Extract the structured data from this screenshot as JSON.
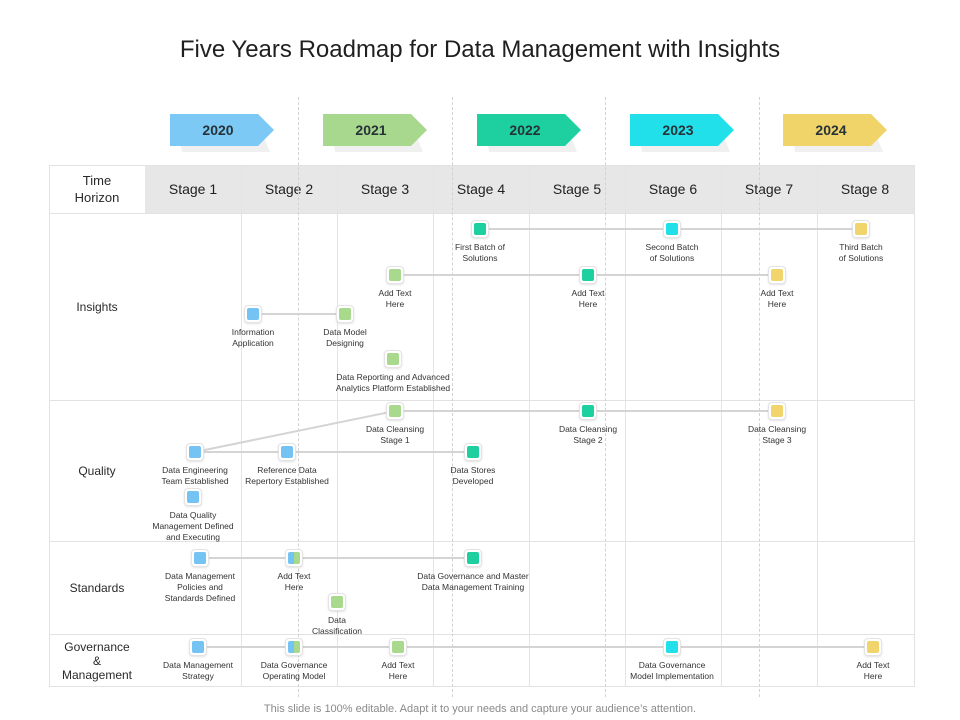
{
  "title": "Five Years Roadmap for Data Management with Insights",
  "footer": "This slide is 100% editable. Adapt it to your needs and capture your audience’s attention.",
  "time_horizon": [
    "Time",
    "Horizon"
  ],
  "stages": [
    "Stage 1",
    "Stage 2",
    "Stage 3",
    "Stage 4",
    "Stage 5",
    "Stage 6",
    "Stage 7",
    "Stage 8"
  ],
  "years": [
    {
      "label": "2020",
      "color": "#7cc9f5"
    },
    {
      "label": "2021",
      "color": "#a8d88e"
    },
    {
      "label": "2022",
      "color": "#1ecf9f"
    },
    {
      "label": "2023",
      "color": "#21e0ea"
    },
    {
      "label": "2024",
      "color": "#f0d46a"
    }
  ],
  "rows": [
    {
      "lines": [
        "Insights"
      ]
    },
    {
      "lines": [
        "Quality"
      ]
    },
    {
      "lines": [
        "Standards"
      ]
    },
    {
      "lines": [
        "Governance",
        "&",
        "Management"
      ]
    }
  ],
  "colors": {
    "blue": "#74c3f3",
    "green": "#a8d98c",
    "teal": "#1ecf9f",
    "cyan": "#21e0ea",
    "yellow": "#f1d46c"
  },
  "nodes": [
    {
      "name": "first-batch-of-solutions",
      "color": "teal",
      "label": [
        "First Batch of",
        "Solutions"
      ]
    },
    {
      "name": "second-batch-of-solutions",
      "color": "cyan",
      "label": [
        "Second Batch",
        "of Solutions"
      ]
    },
    {
      "name": "third-batch-of-solutions",
      "color": "yellow",
      "label": [
        "Third Batch",
        "of Solutions"
      ]
    },
    {
      "name": "insights-add-text-1",
      "color": "green",
      "label": [
        "Add Text",
        "Here"
      ]
    },
    {
      "name": "insights-add-text-2",
      "color": "teal",
      "label": [
        "Add Text",
        "Here"
      ]
    },
    {
      "name": "insights-add-text-3",
      "color": "yellow",
      "label": [
        "Add Text",
        "Here"
      ]
    },
    {
      "name": "information-application",
      "color": "blue",
      "label": [
        "Information",
        "Application"
      ]
    },
    {
      "name": "data-model-designing",
      "color": "green",
      "label": [
        "Data Model",
        "Designing"
      ]
    },
    {
      "name": "data-reporting-platform",
      "color": "green",
      "label": [
        "Data Reporting and Advanced",
        "Analytics Platform Established"
      ]
    },
    {
      "name": "data-cleansing-stage-1",
      "color": "green",
      "label": [
        "Data Cleansing",
        "Stage 1"
      ]
    },
    {
      "name": "data-cleansing-stage-2",
      "color": "teal",
      "label": [
        "Data Cleansing",
        "Stage 2"
      ]
    },
    {
      "name": "data-cleansing-stage-3",
      "color": "yellow",
      "label": [
        "Data Cleansing",
        "Stage 3"
      ]
    },
    {
      "name": "data-engineering-team",
      "color": "blue",
      "label": [
        "Data Engineering",
        "Team Established"
      ]
    },
    {
      "name": "reference-data-repertory",
      "color": "blue",
      "label": [
        "Reference Data",
        "Repertory Established"
      ]
    },
    {
      "name": "data-stores-developed",
      "color": "teal",
      "label": [
        "Data Stores",
        "Developed"
      ]
    },
    {
      "name": "data-quality-management",
      "color": "blue",
      "label": [
        "Data Quality",
        "Management Defined",
        "and Executing"
      ]
    },
    {
      "name": "data-management-policies",
      "color": "blue",
      "label": [
        "Data Management",
        "Policies and",
        "Standards Defined"
      ]
    },
    {
      "name": "standards-add-text",
      "color": "blue,green",
      "label": [
        "Add Text",
        "Here"
      ]
    },
    {
      "name": "data-governance-master-training",
      "color": "teal",
      "label": [
        "Data Governance and Master",
        "Data Management Training"
      ]
    },
    {
      "name": "data-classification",
      "color": "green",
      "label": [
        "Data",
        "Classification"
      ]
    },
    {
      "name": "data-management-strategy",
      "color": "blue",
      "label": [
        "Data Management",
        "Strategy"
      ]
    },
    {
      "name": "data-governance-operating-model",
      "color": "blue,green",
      "label": [
        "Data Governance",
        "Operating Model"
      ]
    },
    {
      "name": "governance-add-text-1",
      "color": "green",
      "label": [
        "Add Text",
        "Here"
      ]
    },
    {
      "name": "data-governance-model-implementation",
      "color": "cyan",
      "label": [
        "Data Governance",
        "Model Implementation"
      ]
    },
    {
      "name": "governance-add-text-2",
      "color": "yellow",
      "label": [
        "Add Text",
        "Here"
      ]
    }
  ]
}
